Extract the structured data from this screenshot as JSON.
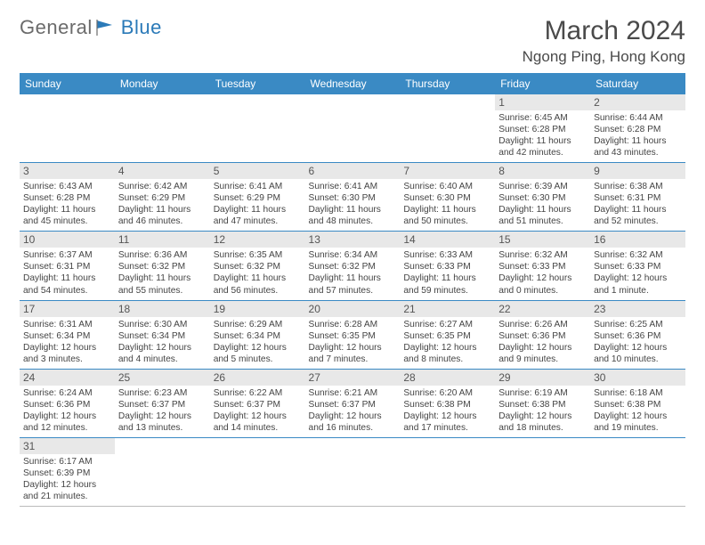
{
  "brand": {
    "part1": "General",
    "part2": "Blue"
  },
  "title": "March 2024",
  "location": "Ngong Ping, Hong Kong",
  "headers": [
    "Sunday",
    "Monday",
    "Tuesday",
    "Wednesday",
    "Thursday",
    "Friday",
    "Saturday"
  ],
  "colors": {
    "header_bg": "#3a8ac4",
    "header_text": "#ffffff",
    "daynum_bg": "#e8e8e8",
    "row_border": "#3a8ac4",
    "brand_gray": "#6b6b6b",
    "brand_blue": "#2b7ab8"
  },
  "weeks": [
    [
      null,
      null,
      null,
      null,
      null,
      {
        "n": "1",
        "sr": "6:45 AM",
        "ss": "6:28 PM",
        "dl": "11 hours and 42 minutes."
      },
      {
        "n": "2",
        "sr": "6:44 AM",
        "ss": "6:28 PM",
        "dl": "11 hours and 43 minutes."
      }
    ],
    [
      {
        "n": "3",
        "sr": "6:43 AM",
        "ss": "6:28 PM",
        "dl": "11 hours and 45 minutes."
      },
      {
        "n": "4",
        "sr": "6:42 AM",
        "ss": "6:29 PM",
        "dl": "11 hours and 46 minutes."
      },
      {
        "n": "5",
        "sr": "6:41 AM",
        "ss": "6:29 PM",
        "dl": "11 hours and 47 minutes."
      },
      {
        "n": "6",
        "sr": "6:41 AM",
        "ss": "6:30 PM",
        "dl": "11 hours and 48 minutes."
      },
      {
        "n": "7",
        "sr": "6:40 AM",
        "ss": "6:30 PM",
        "dl": "11 hours and 50 minutes."
      },
      {
        "n": "8",
        "sr": "6:39 AM",
        "ss": "6:30 PM",
        "dl": "11 hours and 51 minutes."
      },
      {
        "n": "9",
        "sr": "6:38 AM",
        "ss": "6:31 PM",
        "dl": "11 hours and 52 minutes."
      }
    ],
    [
      {
        "n": "10",
        "sr": "6:37 AM",
        "ss": "6:31 PM",
        "dl": "11 hours and 54 minutes."
      },
      {
        "n": "11",
        "sr": "6:36 AM",
        "ss": "6:32 PM",
        "dl": "11 hours and 55 minutes."
      },
      {
        "n": "12",
        "sr": "6:35 AM",
        "ss": "6:32 PM",
        "dl": "11 hours and 56 minutes."
      },
      {
        "n": "13",
        "sr": "6:34 AM",
        "ss": "6:32 PM",
        "dl": "11 hours and 57 minutes."
      },
      {
        "n": "14",
        "sr": "6:33 AM",
        "ss": "6:33 PM",
        "dl": "11 hours and 59 minutes."
      },
      {
        "n": "15",
        "sr": "6:32 AM",
        "ss": "6:33 PM",
        "dl": "12 hours and 0 minutes."
      },
      {
        "n": "16",
        "sr": "6:32 AM",
        "ss": "6:33 PM",
        "dl": "12 hours and 1 minute."
      }
    ],
    [
      {
        "n": "17",
        "sr": "6:31 AM",
        "ss": "6:34 PM",
        "dl": "12 hours and 3 minutes."
      },
      {
        "n": "18",
        "sr": "6:30 AM",
        "ss": "6:34 PM",
        "dl": "12 hours and 4 minutes."
      },
      {
        "n": "19",
        "sr": "6:29 AM",
        "ss": "6:34 PM",
        "dl": "12 hours and 5 minutes."
      },
      {
        "n": "20",
        "sr": "6:28 AM",
        "ss": "6:35 PM",
        "dl": "12 hours and 7 minutes."
      },
      {
        "n": "21",
        "sr": "6:27 AM",
        "ss": "6:35 PM",
        "dl": "12 hours and 8 minutes."
      },
      {
        "n": "22",
        "sr": "6:26 AM",
        "ss": "6:36 PM",
        "dl": "12 hours and 9 minutes."
      },
      {
        "n": "23",
        "sr": "6:25 AM",
        "ss": "6:36 PM",
        "dl": "12 hours and 10 minutes."
      }
    ],
    [
      {
        "n": "24",
        "sr": "6:24 AM",
        "ss": "6:36 PM",
        "dl": "12 hours and 12 minutes."
      },
      {
        "n": "25",
        "sr": "6:23 AM",
        "ss": "6:37 PM",
        "dl": "12 hours and 13 minutes."
      },
      {
        "n": "26",
        "sr": "6:22 AM",
        "ss": "6:37 PM",
        "dl": "12 hours and 14 minutes."
      },
      {
        "n": "27",
        "sr": "6:21 AM",
        "ss": "6:37 PM",
        "dl": "12 hours and 16 minutes."
      },
      {
        "n": "28",
        "sr": "6:20 AM",
        "ss": "6:38 PM",
        "dl": "12 hours and 17 minutes."
      },
      {
        "n": "29",
        "sr": "6:19 AM",
        "ss": "6:38 PM",
        "dl": "12 hours and 18 minutes."
      },
      {
        "n": "30",
        "sr": "6:18 AM",
        "ss": "6:38 PM",
        "dl": "12 hours and 19 minutes."
      }
    ],
    [
      {
        "n": "31",
        "sr": "6:17 AM",
        "ss": "6:39 PM",
        "dl": "12 hours and 21 minutes."
      },
      null,
      null,
      null,
      null,
      null,
      null
    ]
  ],
  "labels": {
    "sunrise": "Sunrise: ",
    "sunset": "Sunset: ",
    "daylight": "Daylight: "
  }
}
